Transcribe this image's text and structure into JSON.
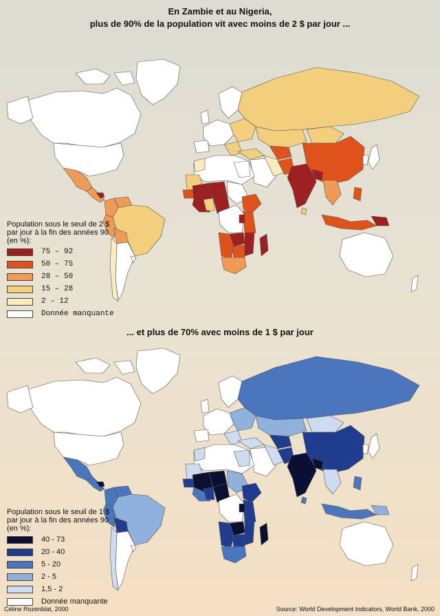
{
  "top": {
    "title_line1": "En Zambie et au Nigeria,",
    "title_line2": "plus de 90% de la population vit avec moins de 2 $ par jour ..."
  },
  "bottom": {
    "title": "... et plus de 70% avec moins de 1 $ par jour"
  },
  "legend1": {
    "title": "Population sous le seuil de 2 $ par jour à la fin des années 90 (en %):",
    "items": [
      {
        "label": "75 – 92",
        "color": "#9e1f1f"
      },
      {
        "label": "50 – 75",
        "color": "#e0521b"
      },
      {
        "label": "28 – 50",
        "color": "#ef9a55"
      },
      {
        "label": "15 – 28",
        "color": "#f3cf7d"
      },
      {
        "label": "2 – 12",
        "color": "#f8ecc0"
      },
      {
        "label": "Donnée manquante",
        "color": "#ffffff"
      }
    ]
  },
  "legend2": {
    "title": "Population sous le seuil de 1 $ par jour à la fin des années 90 (en %):",
    "items": [
      {
        "label": "40 - 73",
        "color": "#0a0f33"
      },
      {
        "label": "20 - 40",
        "color": "#1f3c8e"
      },
      {
        "label": "5 - 20",
        "color": "#4a76bd"
      },
      {
        "label": "2 - 5",
        "color": "#8fb1dc"
      },
      {
        "label": "1,5 - 2",
        "color": "#cddcef"
      },
      {
        "label": "Donnée manquante",
        "color": "#ffffff"
      }
    ]
  },
  "footer": {
    "credit": "Céline Rozenblat, 2000",
    "source": "Source: World Development Indicators, World Bank, 2000"
  }
}
